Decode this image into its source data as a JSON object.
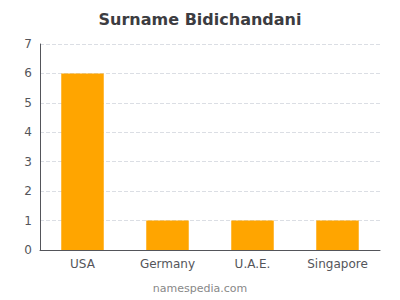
{
  "chart_data": {
    "type": "bar",
    "title": "Surname Bidichandani",
    "categories": [
      "USA",
      "Germany",
      "U.A.E.",
      "Singapore"
    ],
    "values": [
      6,
      1,
      1,
      1
    ],
    "color": "#FFA500",
    "ylim": [
      0,
      7
    ],
    "yticks": [
      0,
      1,
      2,
      3,
      4,
      5,
      6,
      7
    ],
    "grid": true,
    "annotation": "namespedia.com"
  }
}
